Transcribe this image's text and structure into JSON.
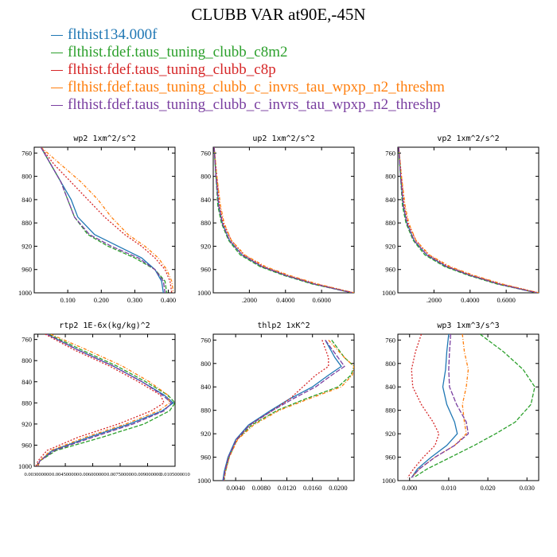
{
  "title": "CLUBB VAR at90E,-45N",
  "legend": [
    {
      "label": "flthist134.000f",
      "color": "#1f77b4"
    },
    {
      "label": "flthist.fdef.taus_tuning_clubb_c8m2",
      "color": "#2ca02c"
    },
    {
      "label": "flthist.fdef.taus_tuning_clubb_c8p",
      "color": "#d62728"
    },
    {
      "label": "flthist.fdef.taus_tuning_clubb_c_invrs_tau_wpxp_n2_threshm",
      "color": "#ff7f0e"
    },
    {
      "label": "flthist.fdef.taus_tuning_clubb_c_invrs_tau_wpxp_n2_threshp",
      "color": "#7a3fa0"
    }
  ],
  "chart_data": [
    {
      "type": "line",
      "title": "wp2  1xm^2/s^2",
      "xlim": [
        0.0,
        0.42
      ],
      "ylim": [
        1000,
        750
      ],
      "xticks": [
        0.1,
        0.2,
        0.3,
        0.4
      ],
      "xticklabels": [
        "0.100",
        "0.200",
        "0.300",
        "0.400"
      ],
      "yticks": [
        760,
        800,
        840,
        880,
        920,
        960,
        1000
      ],
      "y": [
        750,
        780,
        810,
        840,
        870,
        900,
        920,
        940,
        960,
        980,
        1000
      ],
      "series": [
        {
          "name": "flthist134.000f",
          "color": "#1f77b4",
          "dash": "",
          "values": [
            0.02,
            0.05,
            0.08,
            0.11,
            0.13,
            0.18,
            0.25,
            0.32,
            0.36,
            0.38,
            0.385
          ]
        },
        {
          "name": "flthist.fdef.taus_tuning_clubb_c8m2",
          "color": "#2ca02c",
          "dash": "5,2",
          "values": [
            0.02,
            0.05,
            0.08,
            0.1,
            0.12,
            0.16,
            0.22,
            0.3,
            0.36,
            0.39,
            0.395
          ]
        },
        {
          "name": "flthist.fdef.taus_tuning_clubb_c8p",
          "color": "#d62728",
          "dash": "2,2",
          "values": [
            0.02,
            0.06,
            0.11,
            0.16,
            0.21,
            0.27,
            0.32,
            0.36,
            0.39,
            0.405,
            0.41
          ]
        },
        {
          "name": "flthist.fdef.taus_tuning_clubb_c_invrs_tau_wpxp_n2_threshm",
          "color": "#ff7f0e",
          "dash": "4,2,1,2",
          "values": [
            0.02,
            0.08,
            0.14,
            0.19,
            0.23,
            0.28,
            0.33,
            0.37,
            0.395,
            0.41,
            0.415
          ]
        },
        {
          "name": "flthist.fdef.taus_tuning_clubb_c_invrs_tau_wpxp_n2_threshp",
          "color": "#7a3fa0",
          "dash": "6,2",
          "values": [
            0.02,
            0.05,
            0.08,
            0.1,
            0.12,
            0.165,
            0.23,
            0.31,
            0.36,
            0.385,
            0.39
          ]
        }
      ]
    },
    {
      "type": "line",
      "title": "up2  1xm^2/s^2",
      "xlim": [
        0.0,
        0.78
      ],
      "ylim": [
        1000,
        750
      ],
      "xticks": [
        0.2,
        0.4,
        0.6
      ],
      "xticklabels": [
        ".2000",
        "0.4000",
        "0.6000"
      ],
      "yticks": [
        760,
        800,
        840,
        880,
        920,
        960,
        1000
      ],
      "y": [
        750,
        800,
        850,
        880,
        910,
        935,
        955,
        970,
        985,
        1000
      ],
      "series": [
        {
          "name": "flthist134.000f",
          "color": "#1f77b4",
          "dash": "",
          "values": [
            0.005,
            0.015,
            0.03,
            0.05,
            0.09,
            0.16,
            0.27,
            0.4,
            0.56,
            0.77
          ]
        },
        {
          "name": "flthist.fdef.taus_tuning_clubb_c8m2",
          "color": "#2ca02c",
          "dash": "5,2",
          "values": [
            0.005,
            0.015,
            0.025,
            0.045,
            0.085,
            0.15,
            0.26,
            0.39,
            0.55,
            0.77
          ]
        },
        {
          "name": "flthist.fdef.taus_tuning_clubb_c8p",
          "color": "#d62728",
          "dash": "2,2",
          "values": [
            0.005,
            0.02,
            0.035,
            0.055,
            0.1,
            0.17,
            0.28,
            0.41,
            0.57,
            0.78
          ]
        },
        {
          "name": "flthist.fdef.taus_tuning_clubb_c_invrs_tau_wpxp_n2_threshm",
          "color": "#ff7f0e",
          "dash": "4,2,1,2",
          "values": [
            0.005,
            0.02,
            0.04,
            0.06,
            0.1,
            0.175,
            0.29,
            0.42,
            0.58,
            0.78
          ]
        },
        {
          "name": "flthist.fdef.taus_tuning_clubb_c_invrs_tau_wpxp_n2_threshp",
          "color": "#7a3fa0",
          "dash": "6,2",
          "values": [
            0.005,
            0.015,
            0.03,
            0.05,
            0.09,
            0.16,
            0.27,
            0.4,
            0.56,
            0.77
          ]
        }
      ]
    },
    {
      "type": "line",
      "title": "vp2  1xm^2/s^2",
      "xlim": [
        0.0,
        0.78
      ],
      "ylim": [
        1000,
        750
      ],
      "xticks": [
        0.2,
        0.4,
        0.6
      ],
      "xticklabels": [
        ".2000",
        "0.4000",
        "0.6000"
      ],
      "yticks": [
        760,
        800,
        840,
        880,
        920,
        960,
        1000
      ],
      "y": [
        750,
        800,
        850,
        880,
        910,
        935,
        955,
        970,
        985,
        1000
      ],
      "series": [
        {
          "name": "flthist134.000f",
          "color": "#1f77b4",
          "dash": "",
          "values": [
            0.005,
            0.015,
            0.03,
            0.05,
            0.09,
            0.16,
            0.27,
            0.4,
            0.56,
            0.77
          ]
        },
        {
          "name": "flthist.fdef.taus_tuning_clubb_c8m2",
          "color": "#2ca02c",
          "dash": "5,2",
          "values": [
            0.005,
            0.015,
            0.025,
            0.045,
            0.085,
            0.15,
            0.26,
            0.39,
            0.55,
            0.77
          ]
        },
        {
          "name": "flthist.fdef.taus_tuning_clubb_c8p",
          "color": "#d62728",
          "dash": "2,2",
          "values": [
            0.005,
            0.02,
            0.035,
            0.055,
            0.1,
            0.17,
            0.28,
            0.41,
            0.57,
            0.78
          ]
        },
        {
          "name": "flthist.fdef.taus_tuning_clubb_c_invrs_tau_wpxp_n2_threshm",
          "color": "#ff7f0e",
          "dash": "4,2,1,2",
          "values": [
            0.005,
            0.02,
            0.04,
            0.06,
            0.1,
            0.175,
            0.29,
            0.42,
            0.58,
            0.78
          ]
        },
        {
          "name": "flthist.fdef.taus_tuning_clubb_c_invrs_tau_wpxp_n2_threshp",
          "color": "#7a3fa0",
          "dash": "6,2",
          "values": [
            0.005,
            0.015,
            0.03,
            0.05,
            0.09,
            0.16,
            0.27,
            0.4,
            0.56,
            0.77
          ]
        }
      ]
    },
    {
      "type": "line",
      "title": "rtp2  1E-6x(kg/kg)^2",
      "xlim": [
        0.0028,
        0.0105
      ],
      "ylim": [
        1000,
        750
      ],
      "xticks": [
        0.003,
        0.0045,
        0.006,
        0.0075,
        0.009,
        0.0105
      ],
      "xticklabels": [
        "0.003000000",
        "0.004500000",
        "0.006000000",
        "0.007500000",
        "0.009000000",
        "0.0105000010"
      ],
      "yticks": [
        760,
        800,
        840,
        880,
        920,
        960,
        1000
      ],
      "y": [
        750,
        780,
        810,
        840,
        865,
        880,
        895,
        920,
        945,
        970,
        990,
        1000
      ],
      "series": [
        {
          "name": "flthist134.000f",
          "color": "#1f77b4",
          "dash": "",
          "values": [
            0.0035,
            0.0052,
            0.0071,
            0.0087,
            0.0099,
            0.0104,
            0.0098,
            0.008,
            0.0058,
            0.0038,
            0.0031,
            0.003
          ]
        },
        {
          "name": "flthist.fdef.taus_tuning_clubb_c8m2",
          "color": "#2ca02c",
          "dash": "5,2",
          "values": [
            0.0036,
            0.0054,
            0.0073,
            0.0089,
            0.0101,
            0.0105,
            0.0102,
            0.0088,
            0.0065,
            0.004,
            0.0031,
            0.003
          ]
        },
        {
          "name": "flthist.fdef.taus_tuning_clubb_c8p",
          "color": "#d62728",
          "dash": "2,2",
          "values": [
            0.0034,
            0.005,
            0.0069,
            0.0085,
            0.0097,
            0.0099,
            0.0092,
            0.0074,
            0.0052,
            0.0035,
            0.003,
            0.0029
          ]
        },
        {
          "name": "flthist.fdef.taus_tuning_clubb_c_invrs_tau_wpxp_n2_threshm",
          "color": "#ff7f0e",
          "dash": "4,2,1,2",
          "values": [
            0.0037,
            0.0057,
            0.0076,
            0.0091,
            0.0101,
            0.0102,
            0.0096,
            0.0078,
            0.0056,
            0.0037,
            0.0031,
            0.003
          ]
        },
        {
          "name": "flthist.fdef.taus_tuning_clubb_c_invrs_tau_wpxp_n2_threshp",
          "color": "#7a3fa0",
          "dash": "6,2",
          "values": [
            0.0035,
            0.0052,
            0.0071,
            0.0087,
            0.0098,
            0.0103,
            0.0099,
            0.0082,
            0.006,
            0.0039,
            0.0031,
            0.003
          ]
        }
      ]
    },
    {
      "type": "line",
      "title": "thlp2  1xK^2",
      "xlim": [
        0.0005,
        0.0225
      ],
      "ylim": [
        1000,
        750
      ],
      "xticks": [
        0.004,
        0.008,
        0.012,
        0.016,
        0.02
      ],
      "xticklabels": [
        "0.0040",
        "0.0080",
        "0.0120",
        "0.0160",
        "0.0200"
      ],
      "yticks": [
        760,
        800,
        840,
        880,
        920,
        960,
        1000
      ],
      "y": [
        760,
        790,
        805,
        820,
        840,
        860,
        880,
        905,
        930,
        960,
        985,
        1000
      ],
      "series": [
        {
          "name": "flthist134.000f",
          "color": "#1f77b4",
          "dash": "",
          "values": [
            0.018,
            0.0195,
            0.0205,
            0.0185,
            0.016,
            0.0125,
            0.0095,
            0.006,
            0.004,
            0.0028,
            0.0022,
            0.002
          ]
        },
        {
          "name": "flthist.fdef.taus_tuning_clubb_c8m2",
          "color": "#2ca02c",
          "dash": "5,2",
          "values": [
            0.019,
            0.021,
            0.0225,
            0.022,
            0.02,
            0.015,
            0.0105,
            0.0065,
            0.0042,
            0.003,
            0.0024,
            0.0022
          ]
        },
        {
          "name": "flthist.fdef.taus_tuning_clubb_c8p",
          "color": "#d62728",
          "dash": "2,2",
          "values": [
            0.0175,
            0.0185,
            0.0185,
            0.0165,
            0.0145,
            0.0125,
            0.0098,
            0.0062,
            0.0042,
            0.0029,
            0.0023,
            0.0021
          ]
        },
        {
          "name": "flthist.fdef.taus_tuning_clubb_c_invrs_tau_wpxp_n2_threshm",
          "color": "#ff7f0e",
          "dash": "4,2,1,2",
          "values": [
            0.0185,
            0.021,
            0.0225,
            0.0222,
            0.0205,
            0.0155,
            0.0108,
            0.0068,
            0.0043,
            0.003,
            0.0024,
            0.0022
          ]
        },
        {
          "name": "flthist.fdef.taus_tuning_clubb_c_invrs_tau_wpxp_n2_threshp",
          "color": "#7a3fa0",
          "dash": "6,2",
          "values": [
            0.018,
            0.02,
            0.021,
            0.019,
            0.0165,
            0.013,
            0.0098,
            0.0062,
            0.0041,
            0.0029,
            0.0023,
            0.0021
          ]
        }
      ]
    },
    {
      "type": "line",
      "title": "wp3  1xm^3/s^3",
      "xlim": [
        -0.003,
        0.033
      ],
      "ylim": [
        1000,
        750
      ],
      "xticks": [
        0.0,
        0.01,
        0.02,
        0.03
      ],
      "xticklabels": [
        "0.000",
        "0.010",
        "0.020",
        "0.030"
      ],
      "yticks": [
        760,
        800,
        840,
        880,
        920,
        960,
        1000
      ],
      "y": [
        750,
        780,
        810,
        840,
        870,
        900,
        920,
        940,
        960,
        980,
        995
      ],
      "series": [
        {
          "name": "flthist134.000f",
          "color": "#1f77b4",
          "dash": "",
          "values": [
            0.01,
            0.0095,
            0.0092,
            0.0085,
            0.0095,
            0.0115,
            0.0122,
            0.0095,
            0.0055,
            0.002,
            0.0005
          ]
        },
        {
          "name": "flthist.fdef.taus_tuning_clubb_c8m2",
          "color": "#2ca02c",
          "dash": "5,2",
          "values": [
            0.018,
            0.024,
            0.029,
            0.032,
            0.031,
            0.027,
            0.022,
            0.0165,
            0.0105,
            0.0045,
            0.001
          ]
        },
        {
          "name": "flthist.fdef.taus_tuning_clubb_c8p",
          "color": "#d62728",
          "dash": "2,2",
          "values": [
            0.003,
            0.0015,
            0.0005,
            0.0008,
            0.003,
            0.006,
            0.0075,
            0.0065,
            0.0035,
            0.001,
            -0.0005
          ]
        },
        {
          "name": "flthist.fdef.taus_tuning_clubb_c_invrs_tau_wpxp_n2_threshm",
          "color": "#ff7f0e",
          "dash": "4,2,1,2",
          "values": [
            0.0135,
            0.014,
            0.015,
            0.0145,
            0.0135,
            0.014,
            0.0145,
            0.0115,
            0.0065,
            0.0025,
            0.0005
          ]
        },
        {
          "name": "flthist.fdef.taus_tuning_clubb_c_invrs_tau_wpxp_n2_threshp",
          "color": "#7a3fa0",
          "dash": "6,2",
          "values": [
            0.0105,
            0.0102,
            0.01,
            0.0102,
            0.012,
            0.0145,
            0.015,
            0.0115,
            0.0065,
            0.0025,
            0.0005
          ]
        }
      ]
    }
  ]
}
